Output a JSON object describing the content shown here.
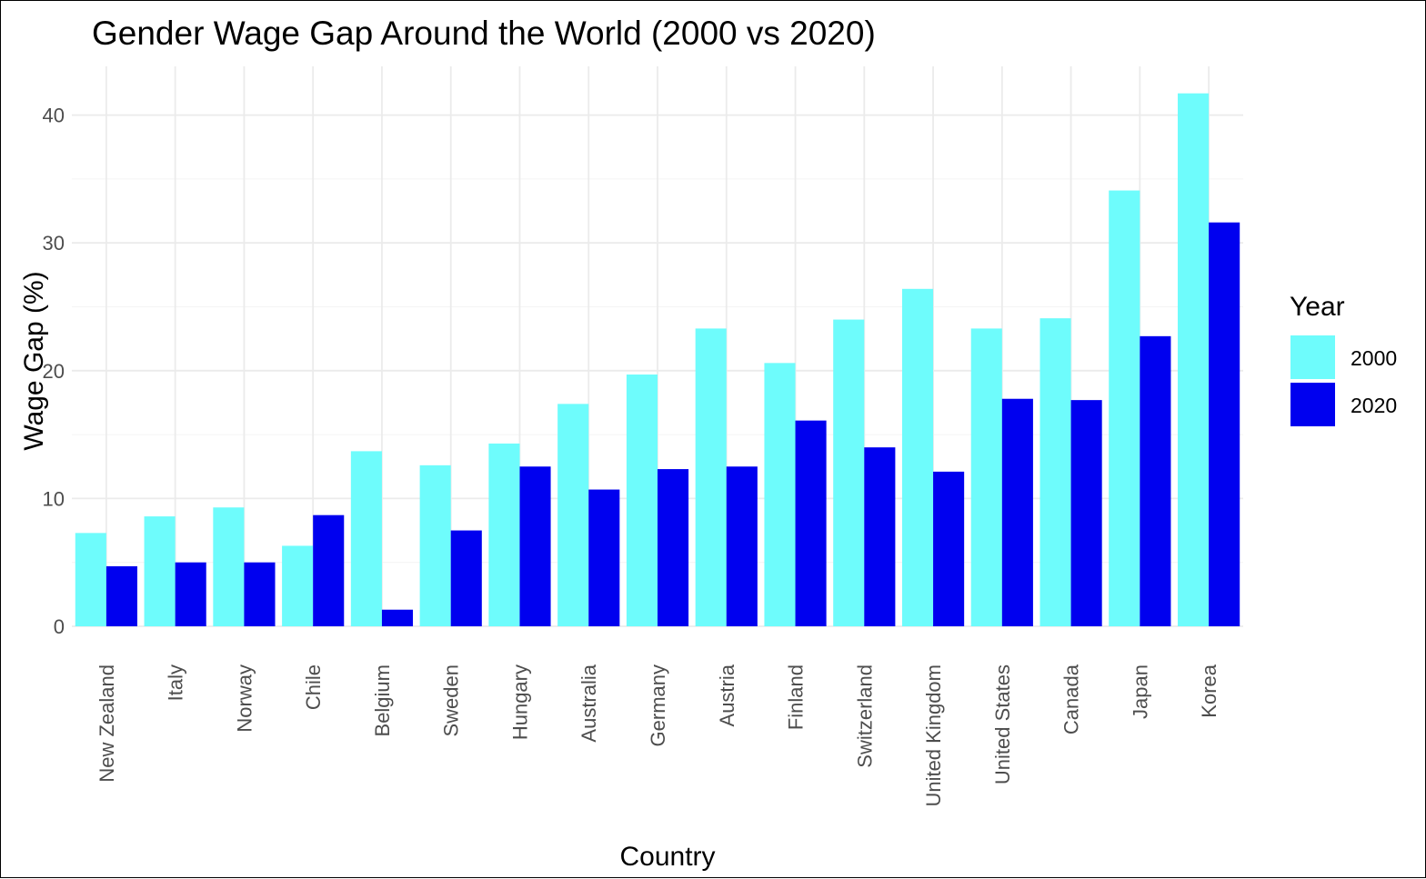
{
  "chart_data": {
    "type": "bar",
    "title": "Gender Wage Gap Around the World (2000 vs 2020)",
    "xlabel": "Country",
    "ylabel": "Wage Gap (%)",
    "ylim": [
      0,
      43
    ],
    "yticks": [
      "0",
      "10",
      "20",
      "30",
      "40"
    ],
    "grid": true,
    "legend": {
      "title": "Year",
      "placement": "right"
    },
    "categories": [
      "New Zealand",
      "Italy",
      "Norway",
      "Chile",
      "Belgium",
      "Sweden",
      "Hungary",
      "Australia",
      "Germany",
      "Austria",
      "Finland",
      "Switzerland",
      "United Kingdom",
      "United States",
      "Canada",
      "Japan",
      "Korea"
    ],
    "series": [
      {
        "name": "2000",
        "color": "#6efcfc",
        "values": [
          7.3,
          8.6,
          9.3,
          6.3,
          13.7,
          12.6,
          14.3,
          17.4,
          19.7,
          23.3,
          20.6,
          24.0,
          26.4,
          23.3,
          24.1,
          34.1,
          41.7
        ]
      },
      {
        "name": "2020",
        "color": "#0000ef",
        "values": [
          4.7,
          5.0,
          5.0,
          8.7,
          1.3,
          7.5,
          12.5,
          10.7,
          12.3,
          12.5,
          16.1,
          14.0,
          12.1,
          17.8,
          17.7,
          22.7,
          31.6
        ]
      }
    ]
  }
}
